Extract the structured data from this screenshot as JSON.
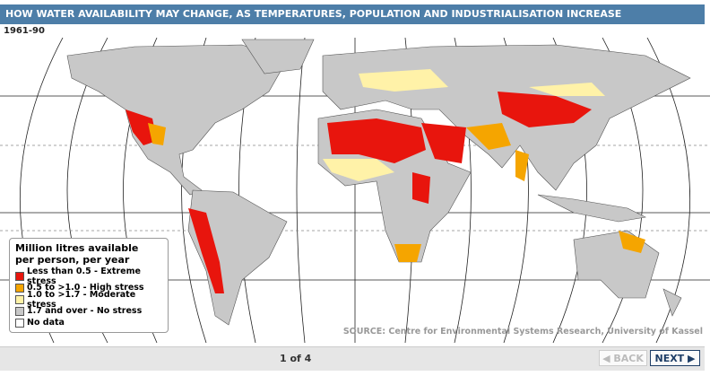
{
  "header": {
    "title": "HOW WATER AVAILABILITY MAY CHANGE, AS TEMPERATURES, POPULATION AND INDUSTRIALISATION INCREASE",
    "period": "1961-90"
  },
  "legend": {
    "title": "Million litres available per person, per year",
    "items": [
      {
        "label": "Less than 0.5 - Extreme stress",
        "color": "#e8150d"
      },
      {
        "label": "0.5 to >1.0 - High stress",
        "color": "#f5a500"
      },
      {
        "label": "1.0 to >1.7 - Moderate stress",
        "color": "#fff2a8"
      },
      {
        "label": "1.7 and over - No stress",
        "color": "#c8c8c8"
      },
      {
        "label": "No data",
        "color": "#ffffff"
      }
    ]
  },
  "source": "SOURCE: Centre for Environmental Systems Research, University of Kassel",
  "pager": {
    "status": "1 of 4",
    "back": "BACK",
    "next": "NEXT"
  }
}
